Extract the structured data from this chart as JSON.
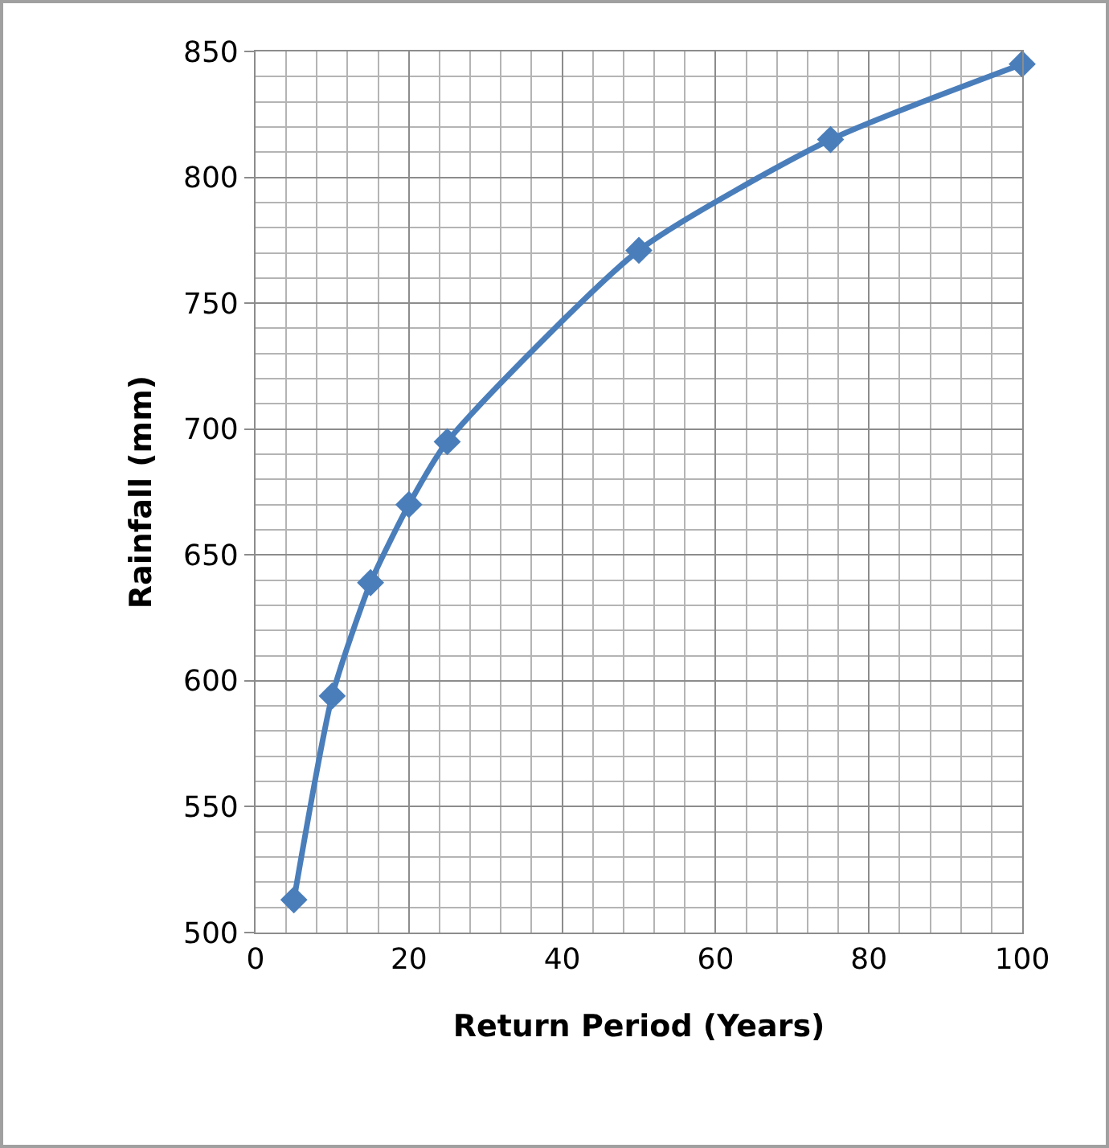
{
  "chart_data": {
    "type": "line",
    "xlabel": "Return Period (Years)",
    "ylabel": "Rainfall (mm)",
    "x": [
      5,
      10,
      15,
      20,
      25,
      50,
      75,
      100
    ],
    "series": [
      {
        "color": "#4a7ebb",
        "values": [
          513,
          594,
          639,
          670,
          695,
          771,
          815,
          845
        ]
      }
    ],
    "xlim": [
      0,
      100
    ],
    "xticks": [
      0,
      20,
      40,
      60,
      80,
      100
    ],
    "ylim": [
      500,
      850
    ],
    "yticks": [
      500,
      550,
      600,
      650,
      700,
      750,
      800,
      850
    ],
    "grid": true,
    "marker": "diamond",
    "line_style": "solid"
  }
}
